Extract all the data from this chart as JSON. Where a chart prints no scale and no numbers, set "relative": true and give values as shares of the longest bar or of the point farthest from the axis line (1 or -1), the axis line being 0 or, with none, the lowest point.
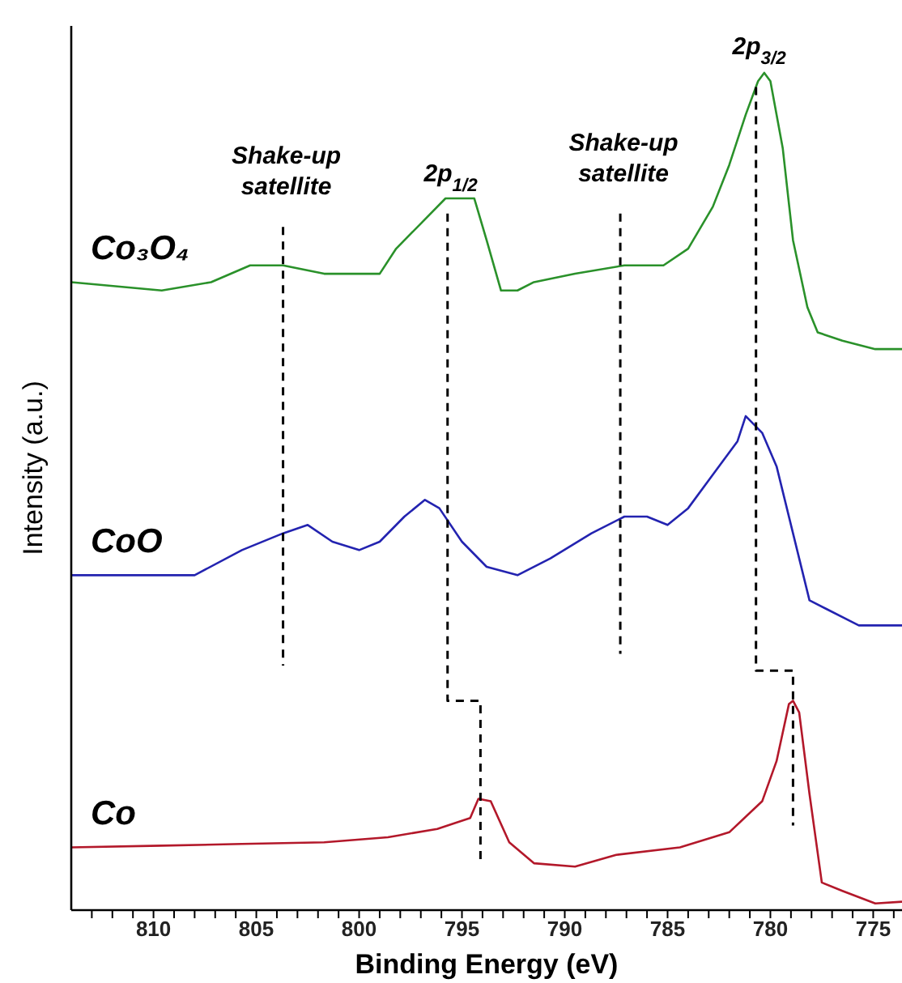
{
  "chart_data": {
    "type": "line",
    "relative": true,
    "xlabel": "Binding Energy (eV)",
    "ylabel": "Intensity (a.u.)",
    "xlim": [
      814,
      773.6
    ],
    "xticks": [
      {
        "value": 813,
        "label": null
      },
      {
        "value": 812,
        "label": null
      },
      {
        "value": 811,
        "label": null
      },
      810,
      {
        "value": 809,
        "label": null
      },
      {
        "value": 808,
        "label": null
      },
      {
        "value": 807,
        "label": null
      },
      {
        "value": 806,
        "label": null
      },
      805,
      {
        "value": 804,
        "label": null
      },
      {
        "value": 803,
        "label": null
      },
      {
        "value": 802,
        "label": null
      },
      {
        "value": 801,
        "label": null
      },
      800,
      {
        "value": 799,
        "label": null
      },
      {
        "value": 798,
        "label": null
      },
      {
        "value": 797,
        "label": null
      },
      {
        "value": 796,
        "label": null
      },
      795,
      {
        "value": 794,
        "label": null
      },
      {
        "value": 793,
        "label": null
      },
      {
        "value": 792,
        "label": null
      },
      {
        "value": 791,
        "label": null
      },
      790,
      {
        "value": 789,
        "label": null
      },
      {
        "value": 788,
        "label": null
      },
      {
        "value": 787,
        "label": null
      },
      {
        "value": 786,
        "label": null
      },
      785,
      {
        "value": 784,
        "label": null
      },
      {
        "value": 783,
        "label": null
      },
      {
        "value": 782,
        "label": null
      },
      {
        "value": 781,
        "label": null
      },
      780,
      {
        "value": 779,
        "label": null
      },
      {
        "value": 778,
        "label": null
      },
      {
        "value": 777,
        "label": null
      },
      {
        "value": 776,
        "label": null
      },
      775,
      {
        "value": 774,
        "label": null
      }
    ],
    "series": [
      {
        "name": "Co₃O₄",
        "color": "#2a912a",
        "x": [
          814,
          809.6,
          807.2,
          805.3,
          803.7,
          801.7,
          800.1,
          799,
          798.2,
          797,
          795.8,
          795,
          794.4,
          793.8,
          793.1,
          792.3,
          791.5,
          789.5,
          787.1,
          785.2,
          784,
          782.8,
          782,
          781.2,
          780.6,
          780.3,
          780,
          779.4,
          778.9,
          778.2,
          777.7,
          776.5,
          774.9,
          773.6
        ],
        "values": [
          0.75,
          0.74,
          0.75,
          0.77,
          0.77,
          0.76,
          0.76,
          0.76,
          0.79,
          0.82,
          0.85,
          0.85,
          0.85,
          0.8,
          0.74,
          0.74,
          0.75,
          0.76,
          0.77,
          0.77,
          0.79,
          0.84,
          0.89,
          0.95,
          0.99,
          1.0,
          0.99,
          0.91,
          0.8,
          0.72,
          0.69,
          0.68,
          0.67,
          0.67
        ]
      },
      {
        "name": "CoO",
        "color": "#2323b0",
        "x": [
          814,
          811.2,
          808,
          805.7,
          803.7,
          802.5,
          801.3,
          800,
          799,
          797.8,
          796.8,
          796.1,
          795,
          793.8,
          792.3,
          790.7,
          788.7,
          787.1,
          786,
          785,
          784,
          782.8,
          781.6,
          781.2,
          780.4,
          779.7,
          778.9,
          778.1,
          777.3,
          775.7,
          773.6
        ],
        "values": [
          0.4,
          0.4,
          0.4,
          0.43,
          0.45,
          0.46,
          0.44,
          0.43,
          0.44,
          0.47,
          0.49,
          0.48,
          0.44,
          0.41,
          0.4,
          0.42,
          0.45,
          0.47,
          0.47,
          0.46,
          0.48,
          0.52,
          0.56,
          0.59,
          0.57,
          0.53,
          0.45,
          0.37,
          0.36,
          0.34,
          0.34
        ]
      },
      {
        "name": "Co",
        "color": "#b3182a",
        "x": [
          814,
          809.6,
          805.7,
          801.7,
          798.6,
          796.2,
          794.6,
          794.2,
          793.6,
          792.7,
          791.5,
          789.5,
          787.5,
          784.4,
          782,
          780.4,
          779.7,
          779.1,
          778.9,
          778.6,
          778.1,
          777.5,
          776.5,
          774.9,
          773.6
        ],
        "values": [
          0.075,
          0.077,
          0.079,
          0.081,
          0.087,
          0.097,
          0.11,
          0.133,
          0.13,
          0.081,
          0.056,
          0.052,
          0.066,
          0.075,
          0.093,
          0.13,
          0.178,
          0.246,
          0.25,
          0.236,
          0.139,
          0.033,
          0.023,
          0.008,
          0.01
        ]
      },
      {
        "type": "line",
        "color": "#000000",
        "line_style": "dashed",
        "x": [
          803.7,
          803.7
        ],
        "values": [
          0.816,
          0.292
        ]
      },
      {
        "type": "line",
        "color": "#000000",
        "line_style": "dashed",
        "x": [
          795.7,
          795.7,
          794.1,
          794.1
        ],
        "values": [
          0.832,
          0.25,
          0.25,
          0.06
        ]
      },
      {
        "type": "line",
        "color": "#000000",
        "line_style": "dashed",
        "x": [
          787.3,
          787.3
        ],
        "values": [
          0.832,
          0.306
        ]
      },
      {
        "type": "line",
        "color": "#000000",
        "line_style": "dashed",
        "x": [
          780.7,
          780.7,
          778.9,
          778.9
        ],
        "values": [
          0.983,
          0.286,
          0.286,
          0.101
        ]
      }
    ],
    "annotations": [
      {
        "text": "Shake-up\nsatellite",
        "x": 803.7,
        "y": 0.816
      },
      {
        "text": "2p$_{1/2}$",
        "x": 795.7,
        "y": 0.832
      },
      {
        "text": "Shake-up\nsatellite",
        "x": 787.3,
        "y": 0.832
      },
      {
        "text": "2p$_{3/2}$",
        "x": 780.7,
        "y": 0.983
      }
    ]
  }
}
